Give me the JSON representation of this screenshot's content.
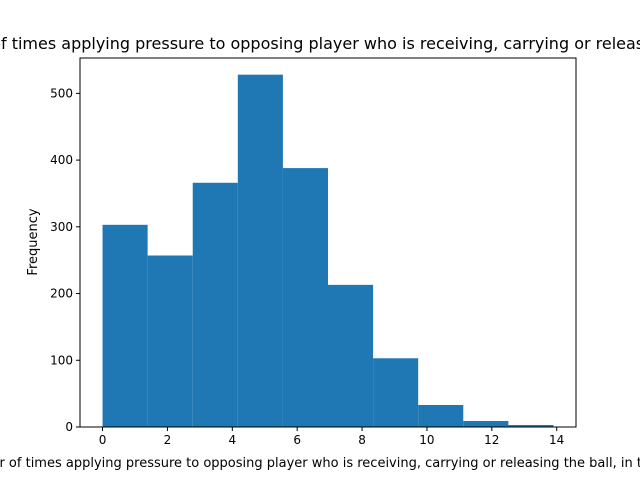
{
  "chart_data": {
    "type": "bar",
    "title": "Number of times applying pressure to opposing player who is receiving, carrying or releasing the ball",
    "xlabel": "Number of times applying pressure to opposing player who is receiving, carrying or releasing the ball, in the match",
    "ylabel": "Frequency",
    "xlim": [
      -0.695,
      14.595
    ],
    "ylim": [
      0,
      553
    ],
    "xticks": [
      0,
      2,
      4,
      6,
      8,
      10,
      12,
      14
    ],
    "yticks": [
      0,
      100,
      200,
      300,
      400,
      500
    ],
    "bins": [
      {
        "x0": 0.0,
        "x1": 1.39,
        "value": 303
      },
      {
        "x0": 1.39,
        "x1": 2.78,
        "value": 257
      },
      {
        "x0": 2.78,
        "x1": 4.17,
        "value": 366
      },
      {
        "x0": 4.17,
        "x1": 5.56,
        "value": 528
      },
      {
        "x0": 5.56,
        "x1": 6.95,
        "value": 388
      },
      {
        "x0": 6.95,
        "x1": 8.34,
        "value": 213
      },
      {
        "x0": 8.34,
        "x1": 9.73,
        "value": 103
      },
      {
        "x0": 9.73,
        "x1": 11.12,
        "value": 33
      },
      {
        "x0": 11.12,
        "x1": 12.51,
        "value": 9
      },
      {
        "x0": 12.51,
        "x1": 13.9,
        "value": 3
      }
    ],
    "bar_color": "#1f77b4",
    "grid": false,
    "legend": "none"
  }
}
